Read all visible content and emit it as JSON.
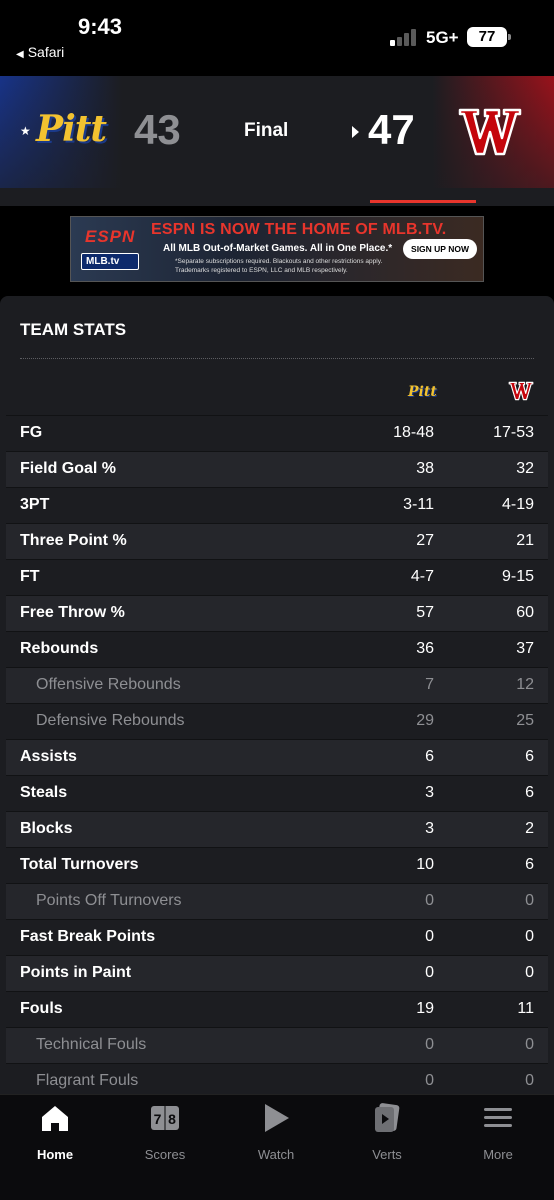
{
  "status_bar": {
    "time": "9:43",
    "back_app": "Safari",
    "network": "5G+",
    "battery": "77"
  },
  "scoreboard": {
    "away": {
      "logo_text": "Pitt",
      "score": "43",
      "logo_color": "#f2c230"
    },
    "status": "Final",
    "home": {
      "logo_text": "W",
      "score": "47",
      "logo_color": "#c5050c"
    },
    "winner": "home"
  },
  "ad": {
    "brand": "ESPN",
    "badge": "MLB.tv",
    "headline": "ESPN IS NOW THE HOME OF MLB.TV.",
    "subline": "All MLB Out-of-Market Games. All in One Place.*",
    "fine_print_1": "*Separate subscriptions required. Blackouts and other restrictions apply.",
    "fine_print_2": "Trademarks registered to ESPN, LLC and MLB respectively.",
    "cta": "SIGN UP NOW"
  },
  "team_stats": {
    "title": "TEAM STATS",
    "columns": {
      "away": "Pitt",
      "home": "W"
    },
    "rows": [
      {
        "label": "FG",
        "away": "18-48",
        "home": "17-53",
        "sub": false
      },
      {
        "label": "Field Goal %",
        "away": "38",
        "home": "32",
        "sub": false
      },
      {
        "label": "3PT",
        "away": "3-11",
        "home": "4-19",
        "sub": false
      },
      {
        "label": "Three Point %",
        "away": "27",
        "home": "21",
        "sub": false
      },
      {
        "label": "FT",
        "away": "4-7",
        "home": "9-15",
        "sub": false
      },
      {
        "label": "Free Throw %",
        "away": "57",
        "home": "60",
        "sub": false
      },
      {
        "label": "Rebounds",
        "away": "36",
        "home": "37",
        "sub": false
      },
      {
        "label": "Offensive Rebounds",
        "away": "7",
        "home": "12",
        "sub": true
      },
      {
        "label": "Defensive Rebounds",
        "away": "29",
        "home": "25",
        "sub": true
      },
      {
        "label": "Assists",
        "away": "6",
        "home": "6",
        "sub": false
      },
      {
        "label": "Steals",
        "away": "3",
        "home": "6",
        "sub": false
      },
      {
        "label": "Blocks",
        "away": "3",
        "home": "2",
        "sub": false
      },
      {
        "label": "Total Turnovers",
        "away": "10",
        "home": "6",
        "sub": false
      },
      {
        "label": "Points Off Turnovers",
        "away": "0",
        "home": "0",
        "sub": true
      },
      {
        "label": "Fast Break Points",
        "away": "0",
        "home": "0",
        "sub": false
      },
      {
        "label": "Points in Paint",
        "away": "0",
        "home": "0",
        "sub": false
      },
      {
        "label": "Fouls",
        "away": "19",
        "home": "11",
        "sub": false
      },
      {
        "label": "Technical Fouls",
        "away": "0",
        "home": "0",
        "sub": true
      },
      {
        "label": "Flagrant Fouls",
        "away": "0",
        "home": "0",
        "sub": true
      }
    ]
  },
  "bottom_nav": [
    {
      "label": "Home",
      "icon": "home-icon",
      "active": true
    },
    {
      "label": "Scores",
      "icon": "scores-icon",
      "active": false
    },
    {
      "label": "Watch",
      "icon": "play-icon",
      "active": false
    },
    {
      "label": "Verts",
      "icon": "verts-icon",
      "active": false
    },
    {
      "label": "More",
      "icon": "menu-icon",
      "active": false
    }
  ],
  "colors": {
    "accent": "#e8352c",
    "background": "#000000",
    "card": "#1c1d21",
    "row_alt": "#25262b",
    "muted_text": "#8e8f93"
  }
}
